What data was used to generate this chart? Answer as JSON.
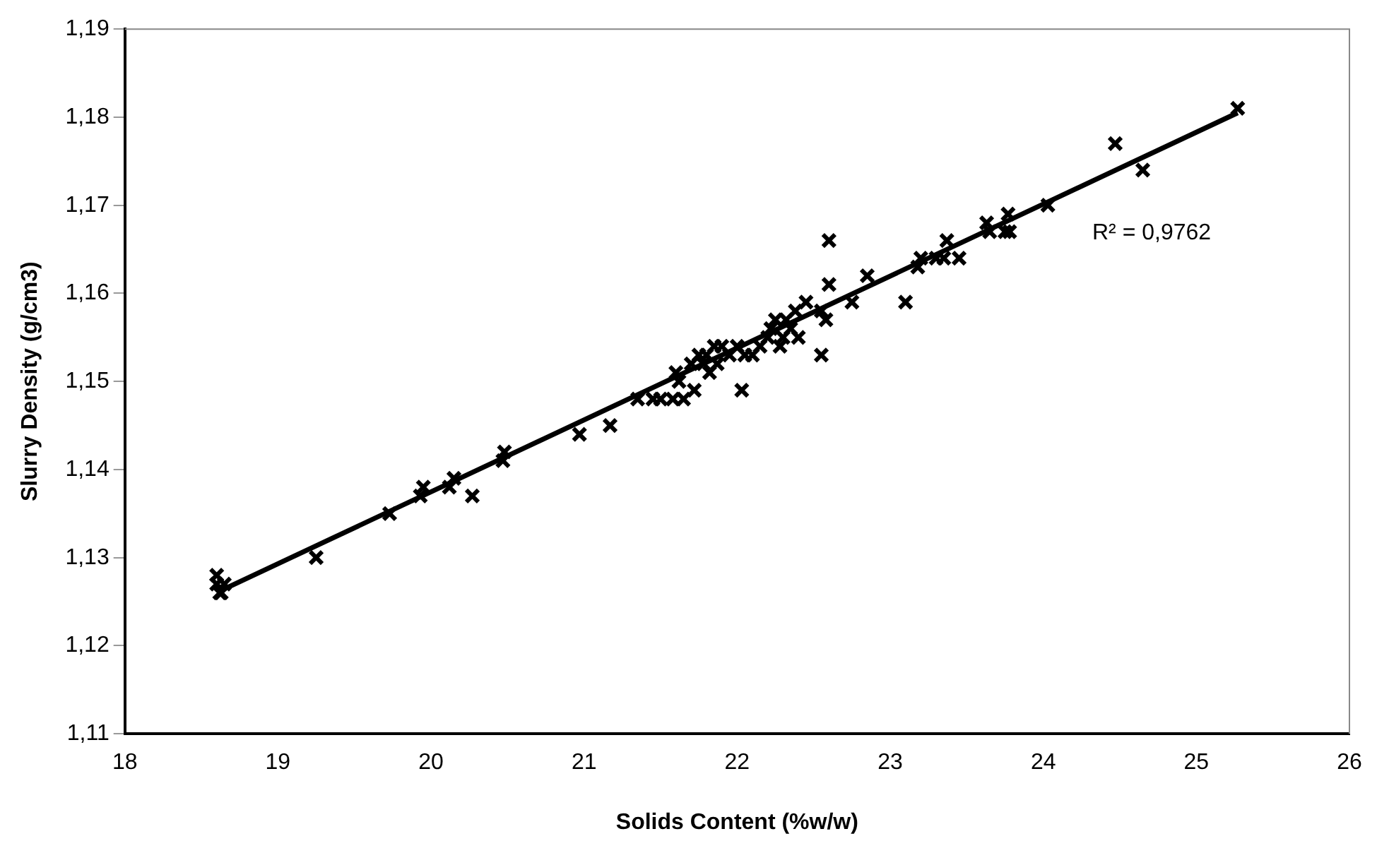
{
  "chart_data": {
    "type": "scatter",
    "xlabel": "Solids Content (%w/w)",
    "ylabel": "Slurry Density (g/cm3)",
    "marker": "cross",
    "grid": false,
    "legend": false,
    "xlim": [
      18,
      26
    ],
    "xticks": [
      18,
      19,
      20,
      21,
      22,
      23,
      24,
      25,
      26
    ],
    "ylim": [
      1.11,
      1.19
    ],
    "yticks": [
      {
        "value": 1.11,
        "label": "1,11"
      },
      {
        "value": 1.12,
        "label": "1,12"
      },
      {
        "value": 1.13,
        "label": "1,13"
      },
      {
        "value": 1.14,
        "label": "1,14"
      },
      {
        "value": 1.15,
        "label": "1,15"
      },
      {
        "value": 1.16,
        "label": "1,16"
      },
      {
        "value": 1.17,
        "label": "1,17"
      },
      {
        "value": 1.18,
        "label": "1,18"
      },
      {
        "value": 1.19,
        "label": "1,19"
      }
    ],
    "annotations": [
      "R² = 0,9762"
    ],
    "series": [
      {
        "type": "scatter",
        "color": "#000000",
        "x": [
          18.6,
          18.6,
          18.62,
          18.65,
          18.63,
          19.25,
          19.73,
          19.93,
          19.95,
          20.12,
          20.15,
          20.27,
          20.47,
          20.48,
          20.97,
          21.17,
          21.35,
          21.45,
          21.5,
          21.58,
          21.62,
          21.6,
          21.65,
          21.7,
          21.72,
          21.75,
          21.78,
          21.8,
          21.85,
          21.82,
          21.87,
          21.9,
          21.95,
          22.0,
          22.03,
          22.05,
          22.1,
          22.15,
          22.2,
          22.22,
          22.25,
          22.28,
          22.3,
          22.32,
          22.35,
          22.38,
          22.4,
          22.45,
          22.55,
          22.55,
          22.58,
          22.6,
          22.6,
          22.75,
          22.85,
          23.1,
          23.18,
          23.2,
          23.3,
          23.37,
          23.35,
          23.45,
          23.63,
          23.65,
          23.75,
          23.77,
          23.78,
          24.03,
          24.47,
          24.65,
          25.27
        ],
        "values": [
          1.128,
          1.127,
          1.126,
          1.127,
          1.126,
          1.13,
          1.135,
          1.137,
          1.138,
          1.138,
          1.139,
          1.137,
          1.141,
          1.142,
          1.144,
          1.145,
          1.148,
          1.148,
          1.148,
          1.148,
          1.15,
          1.151,
          1.148,
          1.152,
          1.149,
          1.153,
          1.152,
          1.153,
          1.154,
          1.151,
          1.152,
          1.154,
          1.153,
          1.154,
          1.149,
          1.153,
          1.153,
          1.154,
          1.155,
          1.156,
          1.157,
          1.154,
          1.155,
          1.157,
          1.156,
          1.158,
          1.155,
          1.159,
          1.153,
          1.158,
          1.157,
          1.161,
          1.166,
          1.159,
          1.162,
          1.159,
          1.163,
          1.164,
          1.164,
          1.166,
          1.164,
          1.164,
          1.168,
          1.167,
          1.167,
          1.169,
          1.167,
          1.17,
          1.177,
          1.174,
          1.181
        ]
      },
      {
        "type": "line",
        "marker": "none",
        "color": "#000000",
        "x": [
          18.62,
          25.27
        ],
        "values": [
          1.1262,
          1.1805
        ]
      }
    ]
  }
}
